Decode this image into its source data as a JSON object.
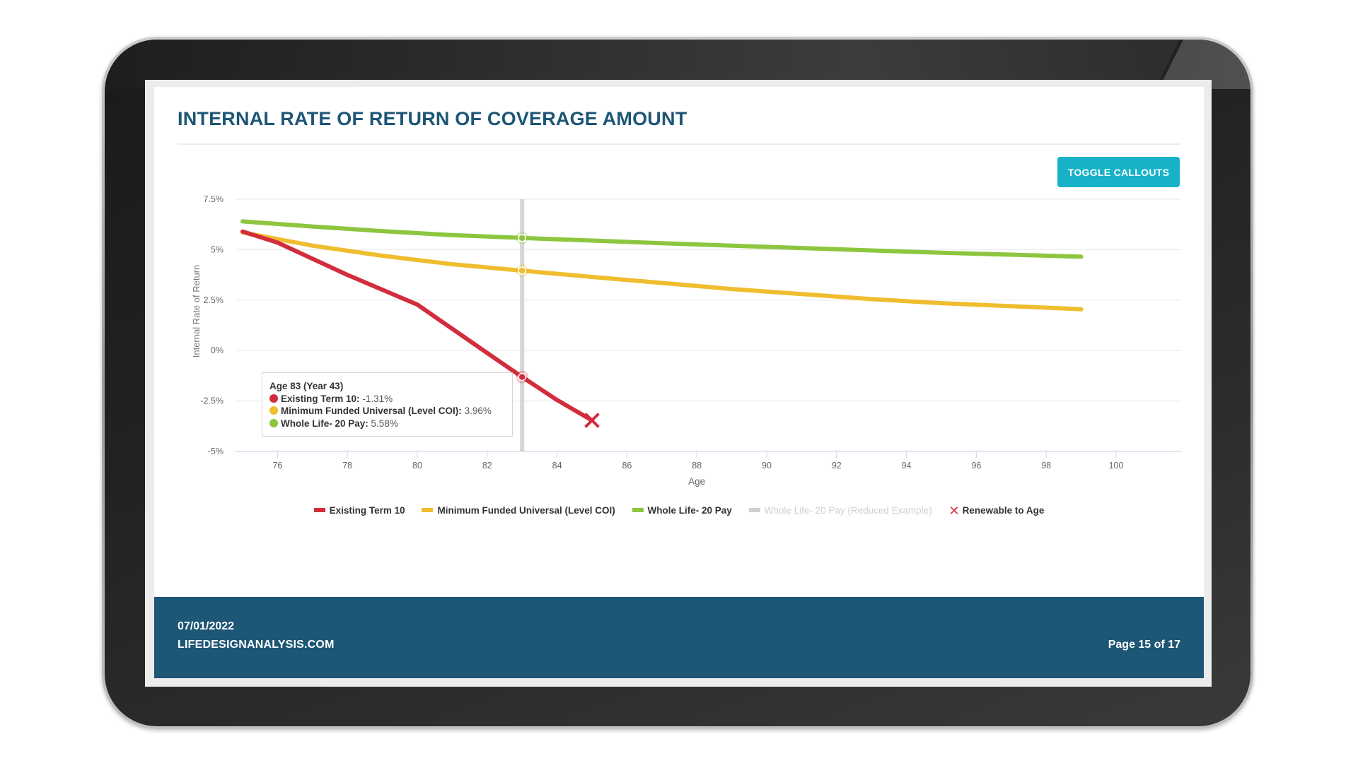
{
  "page": {
    "title": "INTERNAL RATE OF RETURN OF COVERAGE AMOUNT",
    "toggle_button_label": "TOGGLE CALLOUTS"
  },
  "tooltip": {
    "header": "Age 83 (Year 43)",
    "rows": [
      {
        "label": "Existing Term 10:",
        "value": "-1.31%",
        "color": "#d22d3c"
      },
      {
        "label": "Minimum Funded Universal (Level COI):",
        "value": "3.96%",
        "color": "#efbd2e"
      },
      {
        "label": "Whole Life- 20 Pay:",
        "value": "5.58%",
        "color": "#8cc63f"
      }
    ]
  },
  "legend": [
    {
      "label": "Existing Term 10",
      "color": "#d22d3c",
      "type": "line"
    },
    {
      "label": "Minimum Funded Universal (Level COI)",
      "color": "#efbd2e",
      "type": "line"
    },
    {
      "label": "Whole Life- 20 Pay",
      "color": "#8cc63f",
      "type": "line"
    },
    {
      "label": "Whole Life- 20 Pay (Reduced Example)",
      "color": "#d0d0d0",
      "type": "line",
      "hidden": true
    },
    {
      "label": "Renewable to Age",
      "color": "#d22d3c",
      "type": "x-marker"
    }
  ],
  "footer": {
    "date": "07/01/2022",
    "site": "LIFEDESIGNANALYSIS.COM",
    "page_label": "Page 15 of 17"
  },
  "chart_data": {
    "type": "line",
    "title": "INTERNAL RATE OF RETURN OF COVERAGE AMOUNT",
    "xlabel": "Age",
    "ylabel": "Internal Rate of Return",
    "xlim": [
      75,
      102
    ],
    "ylim": [
      -5,
      7.5
    ],
    "x_ticks": [
      76,
      78,
      80,
      82,
      84,
      86,
      88,
      90,
      92,
      94,
      96,
      98,
      100
    ],
    "y_ticks": [
      "-5%",
      "-2.5%",
      "0%",
      "2.5%",
      "5%",
      "7.5%"
    ],
    "y_tick_values": [
      -5,
      -2.5,
      0,
      2.5,
      5,
      7.5
    ],
    "grid": true,
    "legend_position": "bottom",
    "crosshair_x": 83,
    "series": [
      {
        "name": "Existing Term 10",
        "color": "#d22d3c",
        "x": [
          75,
          76,
          78,
          80,
          81,
          82,
          83,
          84,
          85
        ],
        "values": [
          5.9,
          5.35,
          3.75,
          2.28,
          1.08,
          -0.12,
          -1.31,
          -2.45,
          -3.46
        ]
      },
      {
        "name": "Minimum Funded Universal (Level COI)",
        "color": "#efbd2e",
        "x": [
          75,
          77,
          79,
          81,
          83,
          85,
          87,
          89,
          91,
          93,
          95,
          97,
          99
        ],
        "values": [
          5.85,
          5.2,
          4.7,
          4.28,
          3.96,
          3.65,
          3.35,
          3.05,
          2.8,
          2.55,
          2.35,
          2.2,
          2.05
        ]
      },
      {
        "name": "Whole Life- 20 Pay",
        "color": "#8cc63f",
        "x": [
          75,
          77,
          79,
          81,
          83,
          85,
          87,
          89,
          91,
          93,
          95,
          97,
          99
        ],
        "values": [
          6.4,
          6.15,
          5.92,
          5.72,
          5.58,
          5.45,
          5.32,
          5.2,
          5.08,
          4.96,
          4.85,
          4.75,
          4.65
        ]
      },
      {
        "name": "Whole Life- 20 Pay (Reduced Example)",
        "color": "#d0d0d0",
        "hidden": true,
        "x": [],
        "values": []
      }
    ],
    "markers": [
      {
        "name": "Renewable to Age",
        "type": "x",
        "x": 85,
        "y": -3.46,
        "color": "#d22d3c"
      }
    ]
  }
}
